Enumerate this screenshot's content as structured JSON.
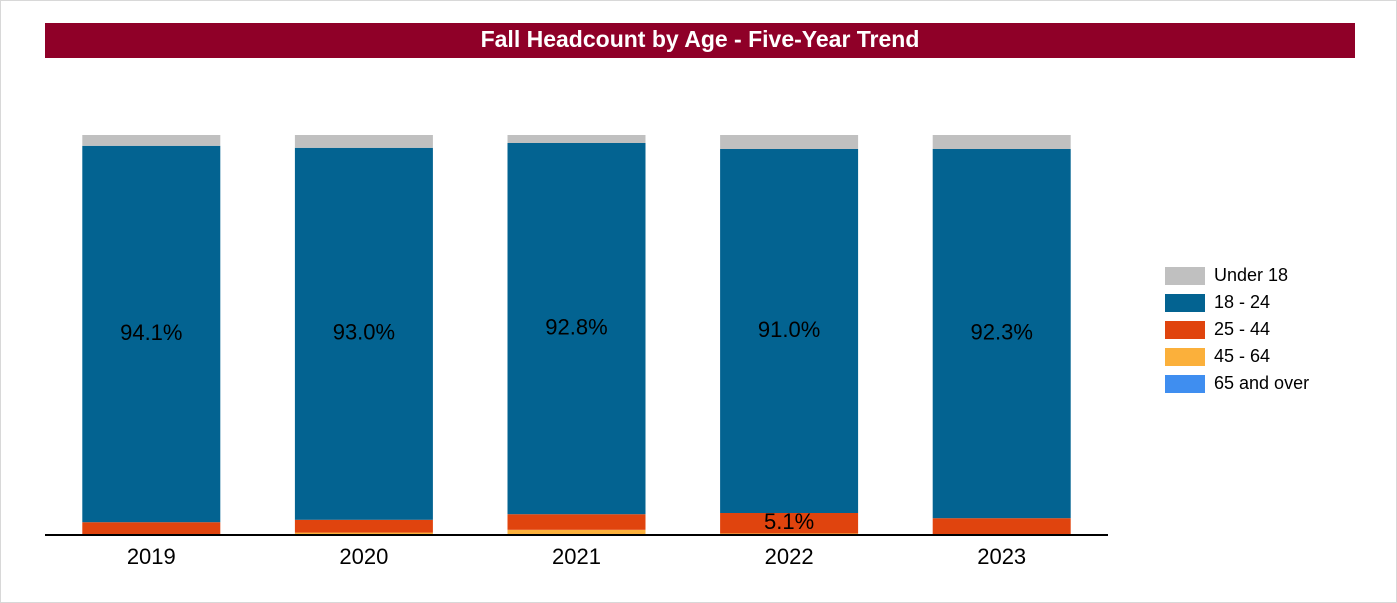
{
  "chart_data": {
    "type": "stacked_bar",
    "title": "Fall Headcount by Age - Five-Year Trend",
    "categories": [
      "2019",
      "2020",
      "2021",
      "2022",
      "2023"
    ],
    "series": [
      {
        "name": "65 and over",
        "color": "#3f8ef0",
        "values": [
          0.0,
          0.0,
          0.2,
          0.0,
          0.0
        ]
      },
      {
        "name": "45 - 64",
        "color": "#fbb03b",
        "values": [
          0.2,
          0.6,
          1.1,
          0.4,
          0.2
        ]
      },
      {
        "name": "25 - 44",
        "color": "#e0440e",
        "values": [
          3.0,
          3.2,
          3.9,
          5.1,
          4.0
        ],
        "value_labels": [
          null,
          null,
          null,
          "5.1%",
          null
        ]
      },
      {
        "name": "18 - 24",
        "color": "#036391",
        "values": [
          94.1,
          93.0,
          92.8,
          91.0,
          92.3
        ],
        "value_labels": [
          "94.1%",
          "93.0%",
          "92.8%",
          "91.0%",
          "92.3%"
        ]
      },
      {
        "name": "Under 18",
        "color": "#c0c0c0",
        "values": [
          2.7,
          3.2,
          2.0,
          3.5,
          3.5
        ]
      }
    ],
    "legend": "right"
  }
}
